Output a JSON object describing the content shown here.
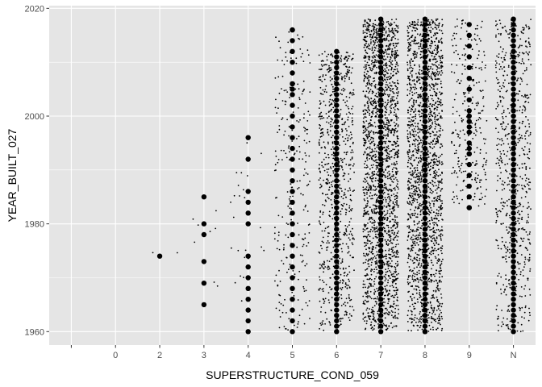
{
  "chart_data": {
    "type": "scatter",
    "subtype": "jitter",
    "xlabel": "SUPERSTRUCTURE_COND_059",
    "ylabel": "YEAR_BUILT_027",
    "categories": [
      "",
      "0",
      "2",
      "3",
      "4",
      "5",
      "6",
      "7",
      "8",
      "9",
      "N"
    ],
    "ylim": [
      1957.5,
      2020.5
    ],
    "y_ticks": [
      1960,
      1980,
      2000,
      2020
    ],
    "grid": true,
    "background_color": "#e5e5e5",
    "grid_color": "#ffffff",
    "point_color": "#000000",
    "outlier_points": [
      {
        "category": "2",
        "y": 1974
      },
      {
        "category": "3",
        "y": 1965
      },
      {
        "category": "3",
        "y": 1969
      },
      {
        "category": "3",
        "y": 1973
      },
      {
        "category": "3",
        "y": 1978
      },
      {
        "category": "3",
        "y": 1980
      },
      {
        "category": "3",
        "y": 1985
      },
      {
        "category": "4",
        "y": 1960
      },
      {
        "category": "4",
        "y": 1962
      },
      {
        "category": "4",
        "y": 1964
      },
      {
        "category": "4",
        "y": 1966
      },
      {
        "category": "4",
        "y": 1968
      },
      {
        "category": "4",
        "y": 1970
      },
      {
        "category": "4",
        "y": 1972
      },
      {
        "category": "4",
        "y": 1974
      },
      {
        "category": "4",
        "y": 1980
      },
      {
        "category": "4",
        "y": 1982
      },
      {
        "category": "4",
        "y": 1984
      },
      {
        "category": "4",
        "y": 1986
      },
      {
        "category": "4",
        "y": 1992
      },
      {
        "category": "4",
        "y": 1996
      },
      {
        "category": "5",
        "y": 2016
      },
      {
        "category": "5",
        "y": 2006
      },
      {
        "category": "5",
        "y": 2005
      },
      {
        "category": "8",
        "y": 1960
      },
      {
        "category": "8",
        "y": 1962
      },
      {
        "category": "9",
        "y": 1983
      },
      {
        "category": "9",
        "y": 1993
      },
      {
        "category": "9",
        "y": 1994
      },
      {
        "category": "9",
        "y": 1997
      },
      {
        "category": "9",
        "y": 1998
      },
      {
        "category": "9",
        "y": 2000
      }
    ],
    "distribution": [
      {
        "category": "2",
        "n": 2,
        "min": 1974,
        "max": 1975
      },
      {
        "category": "3",
        "n": 8,
        "min": 1965,
        "max": 1985
      },
      {
        "category": "4",
        "n": 25,
        "min": 1960,
        "max": 1996
      },
      {
        "category": "5",
        "n": 260,
        "min": 1960,
        "max": 2016
      },
      {
        "category": "6",
        "n": 750,
        "min": 1960,
        "max": 2012
      },
      {
        "category": "7",
        "n": 2000,
        "min": 1960,
        "max": 2018
      },
      {
        "category": "8",
        "n": 1800,
        "min": 1960,
        "max": 2018
      },
      {
        "category": "9",
        "n": 280,
        "min": 1983,
        "max": 2018
      },
      {
        "category": "N",
        "n": 650,
        "min": 1960,
        "max": 2018
      }
    ]
  }
}
